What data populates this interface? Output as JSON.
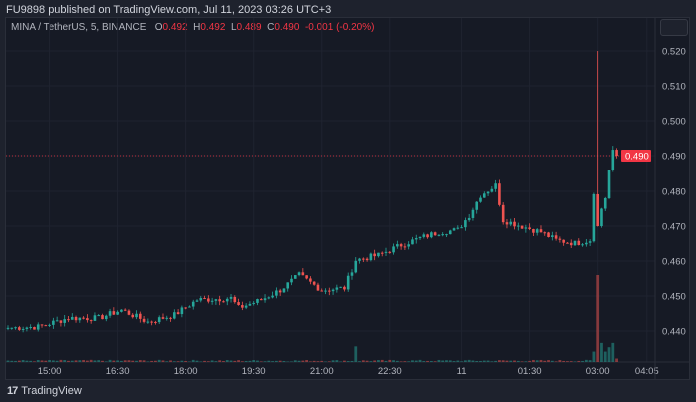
{
  "header": {
    "published": "FU9898 published on TradingView.com, Jul 11, 2023 03:26 UTC+3"
  },
  "legend": {
    "symbol": "MINA / TetherUS, 5, BINANCE",
    "o_label": "O",
    "o": "0.492",
    "h_label": "H",
    "h": "0.492",
    "l_label": "L",
    "l": "0.489",
    "c_label": "C",
    "c": "0.490",
    "change": "-0.001 (-0.20%)"
  },
  "footer": {
    "brand": "TradingView",
    "logo": "17"
  },
  "colors": {
    "up": "#26a69a",
    "down": "#ef5350",
    "last": "#f23645"
  },
  "chart_data": {
    "type": "candlestick",
    "interval": "5m",
    "ylim": [
      0.432,
      0.5235
    ],
    "y_ticks": [
      "0.520",
      "0.510",
      "0.500",
      "0.490",
      "0.480",
      "0.470",
      "0.460",
      "0.450",
      "0.440"
    ],
    "x_ticks": [
      {
        "label": "15:00",
        "bar": 11
      },
      {
        "label": "16:30",
        "bar": 29
      },
      {
        "label": "18:00",
        "bar": 47
      },
      {
        "label": "19:30",
        "bar": 65
      },
      {
        "label": "21:00",
        "bar": 83
      },
      {
        "label": "22:30",
        "bar": 101
      },
      {
        "label": "11",
        "bar": 120
      },
      {
        "label": "01:30",
        "bar": 138
      },
      {
        "label": "03:00",
        "bar": 156
      },
      {
        "label": "04:05",
        "bar": 169
      }
    ],
    "last_price": "0.490",
    "close_anchors": [
      [
        0,
        0.4409
      ],
      [
        8,
        0.4412
      ],
      [
        16,
        0.4437
      ],
      [
        24,
        0.4437
      ],
      [
        30,
        0.446
      ],
      [
        37,
        0.4426
      ],
      [
        44,
        0.4446
      ],
      [
        50,
        0.4489
      ],
      [
        59,
        0.4494
      ],
      [
        61,
        0.4466
      ],
      [
        67,
        0.4489
      ],
      [
        72,
        0.4517
      ],
      [
        77,
        0.456
      ],
      [
        83,
        0.4517
      ],
      [
        89,
        0.4523
      ],
      [
        92,
        0.4603
      ],
      [
        98,
        0.4617
      ],
      [
        104,
        0.4646
      ],
      [
        109,
        0.4666
      ],
      [
        114,
        0.4683
      ],
      [
        119,
        0.4689
      ],
      [
        122,
        0.4731
      ],
      [
        125,
        0.4789
      ],
      [
        129,
        0.4817
      ],
      [
        131,
        0.4717
      ],
      [
        135,
        0.4703
      ],
      [
        141,
        0.4683
      ],
      [
        145,
        0.466
      ],
      [
        150,
        0.4651
      ],
      [
        154,
        0.466
      ],
      [
        155,
        0.48
      ],
      [
        156,
        0.47
      ],
      [
        157,
        0.475
      ],
      [
        158,
        0.478
      ],
      [
        159,
        0.486
      ],
      [
        160,
        0.4917
      ],
      [
        161,
        0.49
      ]
    ],
    "spike": {
      "bar": 156,
      "high": 0.52
    },
    "volume_highlights": [
      {
        "bar": 92,
        "rel": 0.18
      },
      {
        "bar": 155,
        "rel": 0.12
      },
      {
        "bar": 156,
        "rel": 1.0
      },
      {
        "bar": 157,
        "rel": 0.22
      },
      {
        "bar": 158,
        "rel": 0.12
      },
      {
        "bar": 159,
        "rel": 0.17
      },
      {
        "bar": 160,
        "rel": 0.22
      },
      {
        "bar": 161,
        "rel": 0.04
      }
    ]
  }
}
